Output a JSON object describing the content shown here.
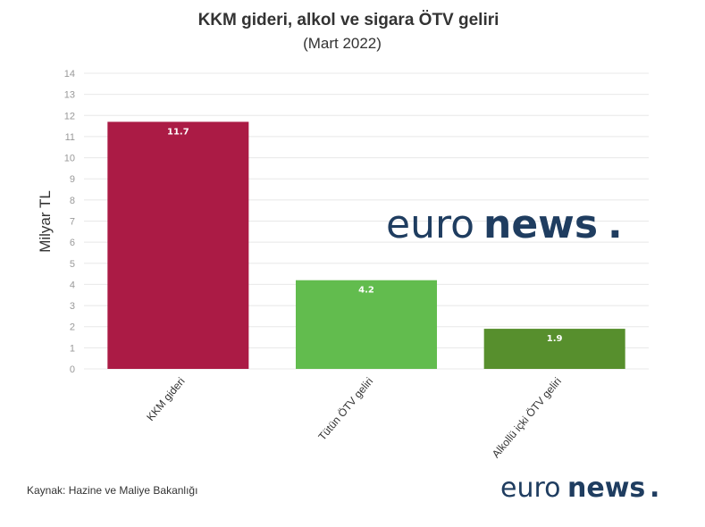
{
  "chart_data": {
    "type": "bar",
    "title": "KKM gideri, alkol ve sigara ÖTV geliri",
    "subtitle": "(Mart 2022)",
    "xlabel": "",
    "ylabel": "Milyar TL",
    "ylim": [
      0,
      14
    ],
    "yticks": [
      "0",
      "1",
      "2",
      "3",
      "4",
      "5",
      "6",
      "7",
      "8",
      "9",
      "10",
      "11",
      "12",
      "13",
      "14"
    ],
    "categories": [
      "KKM gideri",
      "Tütün ÖTV geliri",
      "Alkollü içki ÖTV geliri"
    ],
    "values": [
      11.7,
      4.2,
      1.9
    ],
    "value_labels": [
      "11.7",
      "4.2",
      "1.9"
    ],
    "colors": [
      "#ab1b45",
      "#62bc4e",
      "#578f2d"
    ],
    "grid": true,
    "legend": "none"
  },
  "source_text": "Kaynak: Hazine ve Maliye Bakanlığı",
  "logo": {
    "part1": "euro",
    "part2": "news",
    "dot": ".",
    "color": "#1f3d60",
    "dot_color": "#1f3d60"
  }
}
